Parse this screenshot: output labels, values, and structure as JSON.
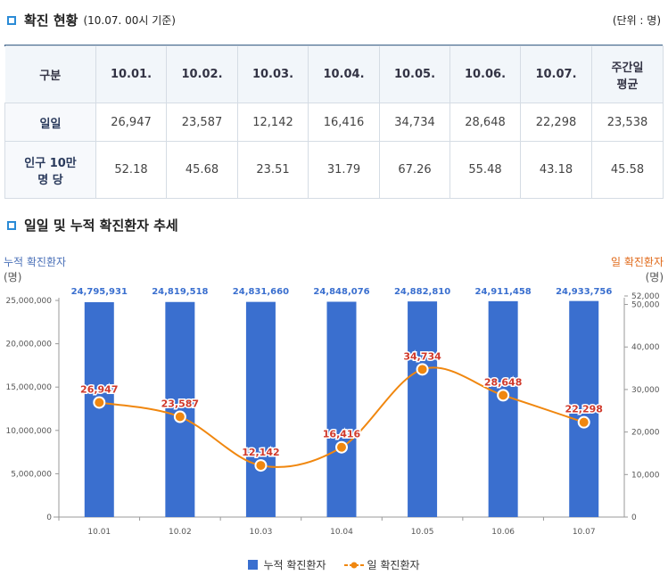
{
  "section1": {
    "title": "확진 현황",
    "subtitle": "(10.07. 00시 기준)",
    "unit": "(단위 : 명)"
  },
  "table": {
    "headers": [
      "구분",
      "10.01.",
      "10.02.",
      "10.03.",
      "10.04.",
      "10.05.",
      "10.06.",
      "10.07.",
      "주간일\n평균"
    ],
    "rows": [
      {
        "label": "일일",
        "values": [
          "26,947",
          "23,587",
          "12,142",
          "16,416",
          "34,734",
          "28,648",
          "22,298",
          "23,538"
        ]
      },
      {
        "label": "인구 10만\n명 당",
        "values": [
          "52.18",
          "45.68",
          "23.51",
          "31.79",
          "67.26",
          "55.48",
          "43.18",
          "45.58"
        ]
      }
    ]
  },
  "section2": {
    "title": "일일 및 누적 확진환자 추세"
  },
  "chart_data": {
    "type": "bar",
    "title": "일일 및 누적 확진환자 추세",
    "categories": [
      "10.01",
      "10.02",
      "10.03",
      "10.04",
      "10.05",
      "10.06",
      "10.07"
    ],
    "series": [
      {
        "name": "누적 확진환자",
        "type": "bar",
        "axis": "left",
        "color": "#3a6fcf",
        "values": [
          24795931,
          24819518,
          24831660,
          24848076,
          24882810,
          24911458,
          24933756
        ],
        "labels": [
          "24,795,931",
          "24,819,518",
          "24,831,660",
          "24,848,076",
          "24,882,810",
          "24,911,458",
          "24,933,756"
        ]
      },
      {
        "name": "일 확진환자",
        "type": "line",
        "axis": "right",
        "color": "#f0870f",
        "values": [
          26947,
          23587,
          12142,
          16416,
          34734,
          28648,
          22298
        ],
        "labels": [
          "26,947",
          "23,587",
          "12,142",
          "16,416",
          "34,734",
          "28,648",
          "22,298"
        ]
      }
    ],
    "y_left": {
      "title": "누적 확진환자",
      "unit": "(명)",
      "min": 0,
      "max": 25000000,
      "ticks": [
        0,
        5000000,
        10000000,
        15000000,
        20000000,
        25000000
      ],
      "tick_labels": [
        "0",
        "5,000,000",
        "10,000,000",
        "15,000,000",
        "20,000,000",
        "25,000,000"
      ]
    },
    "y_right": {
      "title": "일 확진환자",
      "unit": "(명)",
      "min": 0,
      "max": 52000,
      "ticks": [
        0,
        10000,
        20000,
        30000,
        40000,
        50000,
        52000
      ],
      "tick_labels": [
        "0",
        "10,000",
        "20,000",
        "30,000",
        "40,000",
        "50,000",
        "52,000"
      ]
    },
    "legend_position": "bottom",
    "colors": {
      "bar": "#3a6fcf",
      "line": "#f0870f",
      "line_label": "#d0392b",
      "bar_label": "#3a6fcf"
    }
  }
}
